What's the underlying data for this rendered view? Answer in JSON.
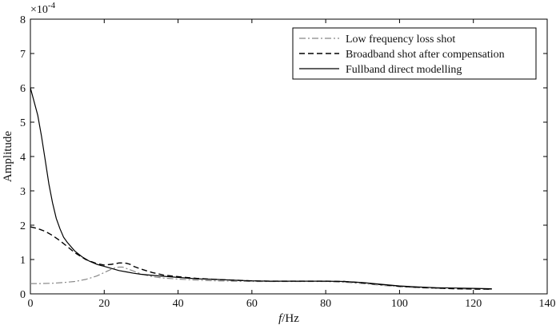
{
  "chart_data": {
    "type": "line",
    "title": "",
    "xlabel_italic": "f",
    "xlabel_unit": "/Hz",
    "ylabel": "Amplitude",
    "y_multiplier_base": "×10",
    "y_multiplier_exp": "-4",
    "xlim": [
      0,
      140
    ],
    "ylim": [
      0,
      8
    ],
    "x_ticks": [
      0,
      20,
      40,
      60,
      80,
      100,
      120,
      140
    ],
    "y_ticks": [
      0,
      1,
      2,
      3,
      4,
      5,
      6,
      7,
      8
    ],
    "grid": false,
    "legend_position": "top-right",
    "series": [
      {
        "name": "Low frequency loss shot",
        "style": "dashdot",
        "color": "#888888",
        "x": [
          0,
          3,
          6,
          9,
          12,
          15,
          18,
          20,
          22,
          23,
          24,
          25,
          26,
          28,
          30,
          33,
          36,
          40,
          45,
          50,
          55,
          60,
          65,
          70,
          75,
          80,
          85,
          90,
          95,
          100,
          105,
          110,
          115,
          120,
          125
        ],
        "y": [
          0.3,
          0.3,
          0.31,
          0.33,
          0.36,
          0.42,
          0.52,
          0.62,
          0.72,
          0.76,
          0.78,
          0.78,
          0.74,
          0.66,
          0.58,
          0.5,
          0.46,
          0.43,
          0.4,
          0.38,
          0.37,
          0.36,
          0.36,
          0.36,
          0.36,
          0.36,
          0.34,
          0.3,
          0.25,
          0.21,
          0.18,
          0.16,
          0.15,
          0.14,
          0.13
        ]
      },
      {
        "name": "Broadband shot after compensation",
        "style": "dashed",
        "color": "#000000",
        "x": [
          0,
          2,
          4,
          6,
          8,
          10,
          12,
          15,
          18,
          20,
          22,
          23,
          24,
          25,
          26,
          27,
          28,
          30,
          33,
          36,
          40,
          45,
          50,
          55,
          60,
          65,
          70,
          75,
          80,
          85,
          90,
          95,
          100,
          105,
          110,
          115,
          120,
          125
        ],
        "y": [
          1.95,
          1.9,
          1.82,
          1.7,
          1.55,
          1.38,
          1.2,
          1.0,
          0.88,
          0.84,
          0.86,
          0.88,
          0.9,
          0.9,
          0.89,
          0.86,
          0.8,
          0.72,
          0.62,
          0.55,
          0.5,
          0.45,
          0.42,
          0.4,
          0.38,
          0.37,
          0.37,
          0.37,
          0.37,
          0.36,
          0.32,
          0.27,
          0.22,
          0.19,
          0.17,
          0.15,
          0.14,
          0.14
        ]
      },
      {
        "name": "Fullband direct modelling",
        "style": "solid",
        "color": "#000000",
        "x": [
          0,
          1,
          2,
          3,
          4,
          5,
          6,
          7,
          8,
          9,
          10,
          12,
          14,
          16,
          18,
          20,
          22,
          24,
          26,
          28,
          30,
          35,
          40,
          45,
          50,
          55,
          60,
          65,
          70,
          75,
          80,
          85,
          90,
          95,
          100,
          105,
          110,
          115,
          120,
          125
        ],
        "y": [
          6.0,
          5.6,
          5.2,
          4.6,
          3.9,
          3.2,
          2.65,
          2.2,
          1.9,
          1.65,
          1.5,
          1.25,
          1.08,
          0.95,
          0.86,
          0.8,
          0.74,
          0.68,
          0.64,
          0.6,
          0.57,
          0.52,
          0.48,
          0.44,
          0.42,
          0.4,
          0.38,
          0.37,
          0.37,
          0.37,
          0.37,
          0.36,
          0.33,
          0.28,
          0.23,
          0.2,
          0.18,
          0.17,
          0.16,
          0.15
        ]
      }
    ]
  }
}
